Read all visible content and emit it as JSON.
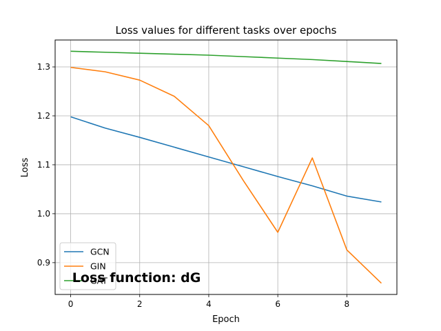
{
  "chart_data": {
    "type": "line",
    "title": "Loss values for different tasks over epochs",
    "xlabel": "Epoch",
    "ylabel": "Loss",
    "x": [
      0,
      1,
      2,
      3,
      4,
      5,
      6,
      7,
      8,
      9
    ],
    "xlim": [
      -0.45,
      9.45
    ],
    "ylim": [
      0.835,
      1.355
    ],
    "xticks": [
      0,
      2,
      4,
      6,
      8
    ],
    "yticks": [
      0.9,
      1.0,
      1.1,
      1.2,
      1.3
    ],
    "xtick_labels": [
      "0",
      "2",
      "4",
      "6",
      "8"
    ],
    "ytick_labels": [
      "0.9",
      "1.0",
      "1.1",
      "1.2",
      "1.3"
    ],
    "grid": true,
    "legend_position": "lower-left",
    "series": [
      {
        "name": "GCN",
        "color": "#1f77b4",
        "values": [
          1.198,
          1.175,
          1.156,
          1.136,
          1.116,
          1.096,
          1.076,
          1.057,
          1.036,
          1.024
        ]
      },
      {
        "name": "GIN",
        "color": "#ff7f0e",
        "values": [
          1.299,
          1.29,
          1.273,
          1.24,
          1.18,
          1.068,
          0.962,
          1.114,
          0.926,
          0.858
        ]
      },
      {
        "name": "GAT",
        "color": "#2ca02c",
        "values": [
          1.332,
          1.33,
          1.328,
          1.326,
          1.324,
          1.321,
          1.318,
          1.315,
          1.311,
          1.307
        ]
      }
    ],
    "annotation": {
      "text": "Loss function: dG",
      "x": 0.05,
      "y": 0.874
    }
  }
}
